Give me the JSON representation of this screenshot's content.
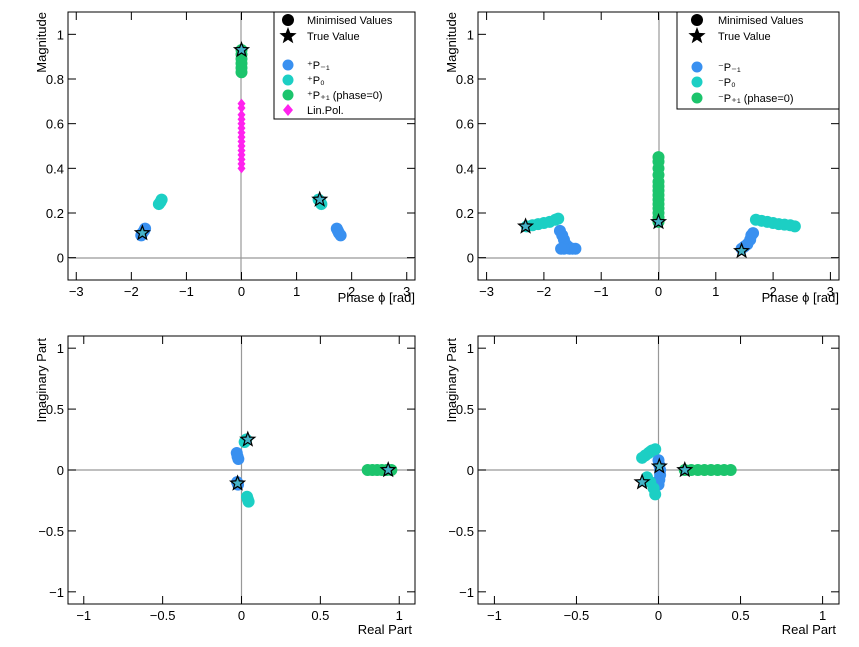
{
  "colors": {
    "minus1": "#3990f0",
    "zero": "#1ccfc4",
    "plus1": "#1cc46c",
    "linpol": "#ff22ee",
    "star": "#000000"
  },
  "legend_labels": {
    "minimised": "Minimised Values",
    "true_value": "True Value",
    "left_minus1": "⁺P₋₁",
    "left_zero": "⁺P₀",
    "left_plus1": "⁺P₊₁ (phase=0)",
    "left_linpol": "Lin.Pol.",
    "right_minus1": "⁻P₋₁",
    "right_zero": "⁻P₀",
    "right_plus1": "⁻P₊₁ (phase=0)"
  },
  "chart_data": [
    {
      "type": "scatter",
      "panel": "top-left",
      "xlabel": "Phase ϕ [rad]",
      "ylabel": "Magnitude",
      "xlim": [
        -3.15,
        3.15
      ],
      "ylim": [
        -0.1,
        1.1
      ],
      "xticks": [
        "−3",
        "−2",
        "−1",
        "0",
        "1",
        "2",
        "3"
      ],
      "yticks": [
        "0",
        "0.2",
        "0.4",
        "0.6",
        "0.8",
        "1"
      ],
      "series": [
        {
          "name": "P-1",
          "color_key": "minus1",
          "x": [
            -1.82,
            -1.8,
            -1.77,
            -1.75,
            1.73,
            1.75,
            1.77,
            1.8
          ],
          "y": [
            0.1,
            0.11,
            0.12,
            0.13,
            0.13,
            0.12,
            0.11,
            0.1
          ]
        },
        {
          "name": "P0",
          "color_key": "zero",
          "x": [
            -1.5,
            -1.47,
            -1.45,
            1.4,
            1.43,
            1.45
          ],
          "y": [
            0.24,
            0.25,
            0.26,
            0.26,
            0.25,
            0.24
          ]
        },
        {
          "name": "P+1",
          "color_key": "plus1",
          "x": [
            0,
            0,
            0,
            0,
            0,
            0
          ],
          "y": [
            0.83,
            0.85,
            0.87,
            0.89,
            0.91,
            0.93
          ]
        },
        {
          "name": "Lin.Pol.",
          "color_key": "linpol",
          "x": [
            0,
            0,
            0,
            0,
            0,
            0,
            0,
            0,
            0,
            0,
            0,
            0,
            0,
            0,
            0
          ],
          "y": [
            0.4,
            0.42,
            0.44,
            0.46,
            0.48,
            0.5,
            0.52,
            0.54,
            0.56,
            0.58,
            0.6,
            0.62,
            0.64,
            0.67,
            0.69
          ]
        }
      ],
      "stars": {
        "x": [
          -1.8,
          1.42,
          0
        ],
        "y": [
          0.11,
          0.26,
          0.93
        ]
      }
    },
    {
      "type": "scatter",
      "panel": "top-right",
      "xlabel": "Phase ϕ [rad]",
      "ylabel": "Magnitude",
      "xlim": [
        -3.15,
        3.15
      ],
      "ylim": [
        -0.1,
        1.1
      ],
      "xticks": [
        "−3",
        "−2",
        "−1",
        "0",
        "1",
        "2",
        "3"
      ],
      "yticks": [
        "0",
        "0.2",
        "0.4",
        "0.6",
        "0.8",
        "1"
      ],
      "series": [
        {
          "name": "P-1",
          "color_key": "minus1",
          "x": [
            -1.72,
            -1.68,
            -1.65,
            -1.62,
            -1.58,
            -1.55,
            -1.5,
            -1.45,
            -1.65,
            -1.7,
            1.45,
            1.5,
            1.55,
            1.6,
            1.62,
            1.65
          ],
          "y": [
            0.12,
            0.1,
            0.08,
            0.06,
            0.05,
            0.04,
            0.04,
            0.04,
            0.04,
            0.04,
            0.04,
            0.05,
            0.06,
            0.08,
            0.1,
            0.11
          ]
        },
        {
          "name": "P0",
          "color_key": "zero",
          "x": [
            -2.3,
            -2.2,
            -2.1,
            -2.0,
            -1.9,
            -1.8,
            -1.75,
            1.7,
            1.8,
            1.9,
            2.0,
            2.1,
            2.2,
            2.3,
            2.38
          ],
          "y": [
            0.14,
            0.145,
            0.15,
            0.155,
            0.16,
            0.17,
            0.175,
            0.17,
            0.165,
            0.16,
            0.155,
            0.15,
            0.148,
            0.145,
            0.14
          ]
        },
        {
          "name": "P+1",
          "color_key": "plus1",
          "x": [
            0,
            0,
            0,
            0,
            0,
            0,
            0,
            0,
            0,
            0,
            0,
            0,
            0,
            0
          ],
          "y": [
            0.16,
            0.18,
            0.2,
            0.22,
            0.24,
            0.26,
            0.28,
            0.3,
            0.32,
            0.34,
            0.37,
            0.4,
            0.43,
            0.45
          ]
        }
      ],
      "stars": {
        "x": [
          -2.32,
          1.45,
          0
        ],
        "y": [
          0.14,
          0.03,
          0.16
        ]
      }
    },
    {
      "type": "scatter",
      "panel": "bottom-left",
      "xlabel": "Real Part",
      "ylabel": "Imaginary Part",
      "xlim": [
        -1.1,
        1.1
      ],
      "ylim": [
        -1.1,
        1.1
      ],
      "xticks": [
        "−1",
        "−0.5",
        "0",
        "0.5",
        "1"
      ],
      "yticks": [
        "−1",
        "−0.5",
        "0",
        "0.5",
        "1"
      ],
      "series": [
        {
          "name": "P-1",
          "color_key": "minus1",
          "x": [
            -0.03,
            -0.025,
            -0.02,
            -0.028,
            -0.022
          ],
          "y": [
            0.14,
            0.11,
            0.09,
            -0.1,
            -0.12
          ]
        },
        {
          "name": "P0",
          "color_key": "zero",
          "x": [
            0.02,
            0.03,
            0.035,
            0.04,
            0.045
          ],
          "y": [
            0.23,
            0.25,
            -0.22,
            -0.24,
            -0.26
          ]
        },
        {
          "name": "P+1",
          "color_key": "plus1",
          "x": [
            0.8,
            0.83,
            0.86,
            0.89,
            0.92,
            0.95
          ],
          "y": [
            0,
            0,
            0,
            0,
            0,
            0
          ]
        }
      ],
      "stars": {
        "x": [
          -0.025,
          0.04,
          0.93
        ],
        "y": [
          -0.11,
          0.25,
          0
        ]
      }
    },
    {
      "type": "scatter",
      "panel": "bottom-right",
      "xlabel": "Real Part",
      "ylabel": "Imaginary Part",
      "xlim": [
        -1.1,
        1.1
      ],
      "ylim": [
        -1.1,
        1.1
      ],
      "xticks": [
        "−1",
        "−0.5",
        "0",
        "0.5",
        "1"
      ],
      "yticks": [
        "−1",
        "−0.5",
        "0",
        "0.5",
        "1"
      ],
      "series": [
        {
          "name": "P-1",
          "color_key": "minus1",
          "x": [
            0,
            0.005,
            0.01,
            0.01,
            0.005,
            0
          ],
          "y": [
            -0.12,
            -0.08,
            -0.04,
            0.0,
            0.04,
            0.08
          ]
        },
        {
          "name": "P0",
          "color_key": "zero",
          "x": [
            -0.1,
            -0.08,
            -0.06,
            -0.05,
            -0.04,
            -0.02,
            -0.07,
            -0.05,
            -0.03,
            -0.02
          ],
          "y": [
            0.1,
            0.12,
            0.14,
            0.15,
            0.16,
            0.17,
            -0.06,
            -0.1,
            -0.15,
            -0.2
          ]
        },
        {
          "name": "P+1",
          "color_key": "plus1",
          "x": [
            0.16,
            0.2,
            0.24,
            0.28,
            0.32,
            0.36,
            0.4,
            0.44
          ],
          "y": [
            0,
            0,
            0,
            0,
            0,
            0,
            0,
            0
          ]
        }
      ],
      "stars": {
        "x": [
          -0.1,
          0.005,
          0.16
        ],
        "y": [
          -0.1,
          0.03,
          0
        ]
      }
    }
  ]
}
